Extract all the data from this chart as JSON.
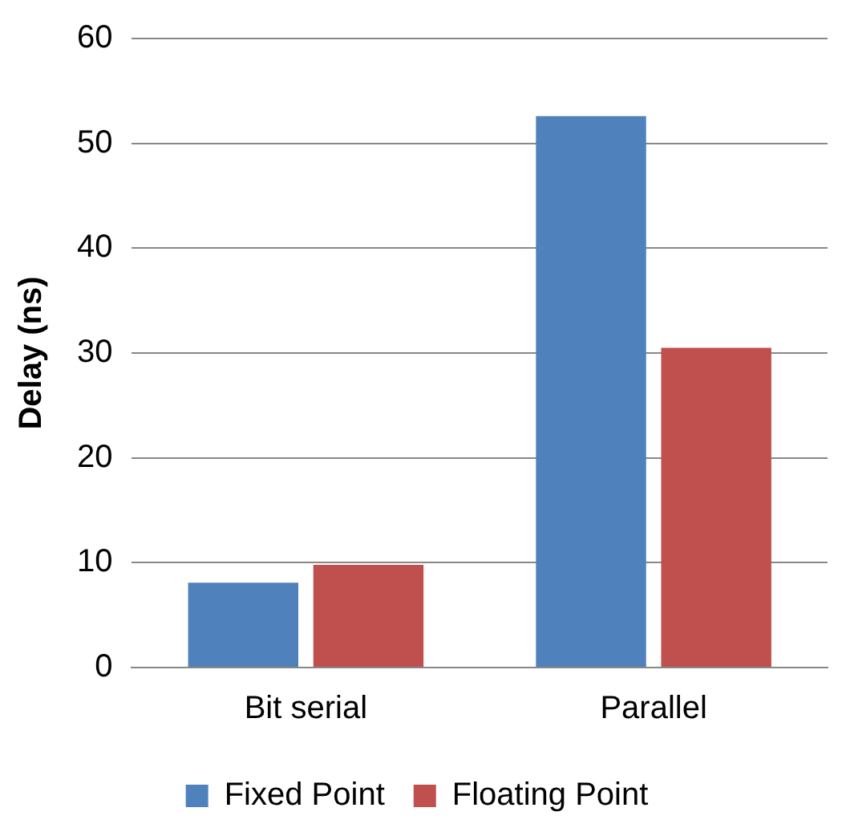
{
  "chart_data": {
    "type": "bar",
    "ylabel": "Delay (ns)",
    "categories": [
      "Bit serial",
      "Parallel"
    ],
    "series": [
      {
        "name": "Fixed Point",
        "color": "#4f81bd",
        "values": [
          8.1,
          52.6
        ]
      },
      {
        "name": "Floating Point",
        "color": "#c0504d",
        "values": [
          9.8,
          30.5
        ]
      }
    ],
    "ylim": [
      0,
      60
    ],
    "yticks": [
      0,
      10,
      20,
      30,
      40,
      50,
      60
    ],
    "grid": "y",
    "legend": "bottom"
  }
}
